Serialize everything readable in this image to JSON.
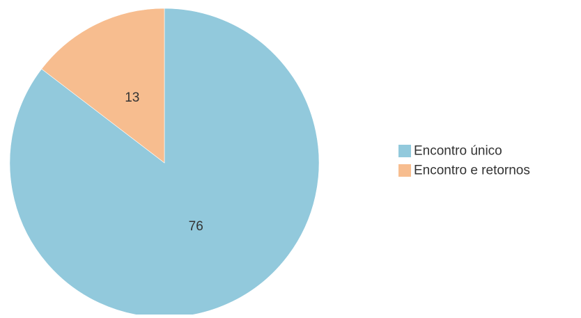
{
  "chart_data": {
    "type": "pie",
    "title": "",
    "categories": [
      "Encontro único",
      "Encontro e retornos"
    ],
    "values": [
      76,
      13
    ],
    "colors": [
      "#92c9dc",
      "#f7bd8f"
    ],
    "start_angle_deg": 0,
    "direction": "clockwise",
    "data_labels_shown": true,
    "legend": {
      "position": "right",
      "entries": [
        "Encontro único",
        "Encontro e retornos"
      ]
    }
  }
}
